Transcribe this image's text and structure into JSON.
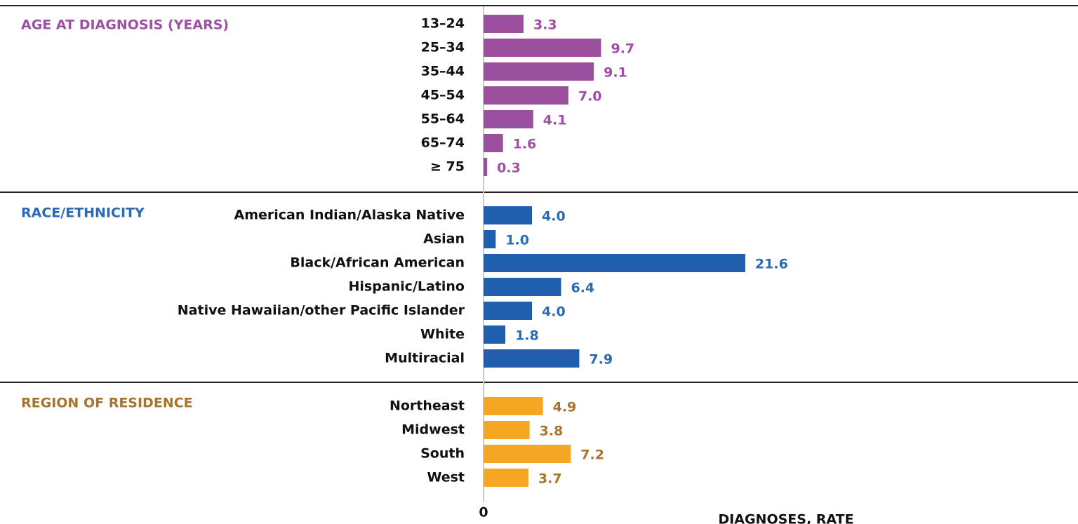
{
  "chart_data": [
    {
      "type": "bar",
      "orientation": "horizontal",
      "title": "AGE AT DIAGNOSIS (YEARS)",
      "title_color": "#a04fa6",
      "categories": [
        "13–24",
        "25–34",
        "35–44",
        "45–54",
        "55–64",
        "65–74",
        "≥ 75"
      ],
      "values": [
        3.3,
        9.7,
        9.1,
        7.0,
        4.1,
        1.6,
        0.3
      ],
      "value_labels": [
        "3.3",
        "9.7",
        "9.1",
        "7.0",
        "4.1",
        "1.6",
        "0.3"
      ],
      "color": "#9b4f9e",
      "label_color": "#a04fa6",
      "xlim": [
        0,
        49
      ]
    },
    {
      "type": "bar",
      "orientation": "horizontal",
      "title": "RACE/ETHNICITY",
      "title_color": "#2a6bb5",
      "categories": [
        "American Indian/Alaska Native",
        "Asian",
        "Black/African American",
        "Hispanic/Latino",
        "Native Hawaiian/other Pacific Islander",
        "White",
        "Multiracial"
      ],
      "values": [
        4.0,
        1.0,
        21.6,
        6.4,
        4.0,
        1.8,
        7.9
      ],
      "value_labels": [
        "4.0",
        "1.0",
        "21.6",
        "6.4",
        "4.0",
        "1.8",
        "7.9"
      ],
      "color": "#1f5fae",
      "label_color": "#2a6bb5",
      "xlim": [
        0,
        49
      ]
    },
    {
      "type": "bar",
      "orientation": "horizontal",
      "title": "REGION OF RESIDENCE",
      "title_color": "#a8742a",
      "categories": [
        "Northeast",
        "Midwest",
        "South",
        "West"
      ],
      "values": [
        4.9,
        3.8,
        7.2,
        3.7
      ],
      "value_labels": [
        "4.9",
        "3.8",
        "7.2",
        "3.7"
      ],
      "color": "#f5a623",
      "label_color": "#a8742a",
      "xlim": [
        0,
        49
      ],
      "xticks": [
        0
      ],
      "xlabel": "DIAGNOSES, RATE"
    }
  ]
}
